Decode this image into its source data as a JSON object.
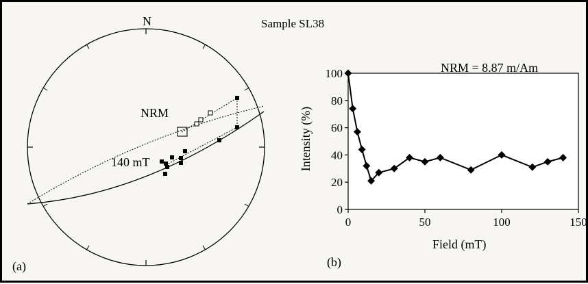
{
  "figure": {
    "title": "Sample SL38",
    "north_label": "N",
    "panel_a_label": "(a)",
    "panel_b_label": "(b)"
  },
  "stereonet": {
    "nrm_label": "NRM",
    "step_label": "140 mT"
  },
  "chart_data": [
    {
      "type": "line",
      "panel": "(b)",
      "xlabel": "Field (mT)",
      "ylabel": "Intensity (%)",
      "xlim": [
        0,
        150
      ],
      "ylim": [
        0,
        100
      ],
      "xticks": [
        0,
        50,
        100,
        150
      ],
      "yticks": [
        0,
        20,
        40,
        60,
        80,
        100
      ],
      "grid": false,
      "annotation": "NRM = 8.87 m/Am",
      "marker": "diamond",
      "series": [
        {
          "x": [
            0,
            3,
            6,
            9,
            12,
            15,
            20,
            30,
            40,
            50,
            60,
            80,
            100,
            120,
            130,
            140
          ],
          "y": [
            100,
            74,
            57,
            44,
            32,
            21,
            27,
            30,
            38,
            35,
            38,
            29,
            40,
            31,
            35,
            38
          ]
        }
      ]
    }
  ]
}
